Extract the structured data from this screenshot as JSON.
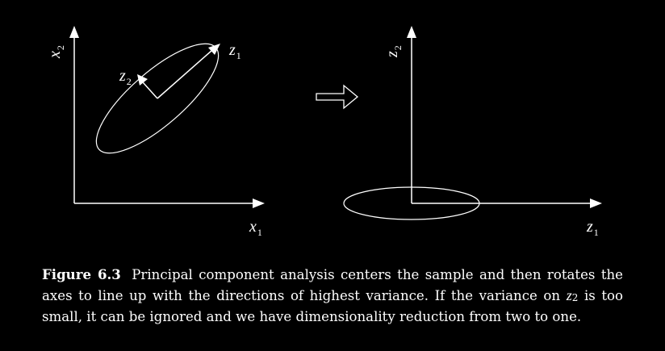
{
  "colors": {
    "background": "#000000",
    "foreground": "#ffffff"
  },
  "left_plot": {
    "x_axis": {
      "var": "x",
      "sub": "1"
    },
    "y_axis": {
      "var": "x",
      "sub": "2"
    },
    "arrow_z1": {
      "var": "z",
      "sub": "1"
    },
    "arrow_z2": {
      "var": "z",
      "sub": "2"
    }
  },
  "transform_arrow_icon": "double-right-arrow-icon",
  "right_plot": {
    "x_axis": {
      "var": "z",
      "sub": "1"
    },
    "y_axis": {
      "var": "z",
      "sub": "2"
    }
  },
  "caption": {
    "figure_label": "Figure 6.3",
    "text_before_var": "Principal component analysis centers the sample and then rotates the axes to line up with the directions of highest variance. If the variance on",
    "var": "z",
    "var_sub": "2",
    "text_after_var": "is too small, it can be ignored and we have dimensionality reduction from two to one."
  }
}
